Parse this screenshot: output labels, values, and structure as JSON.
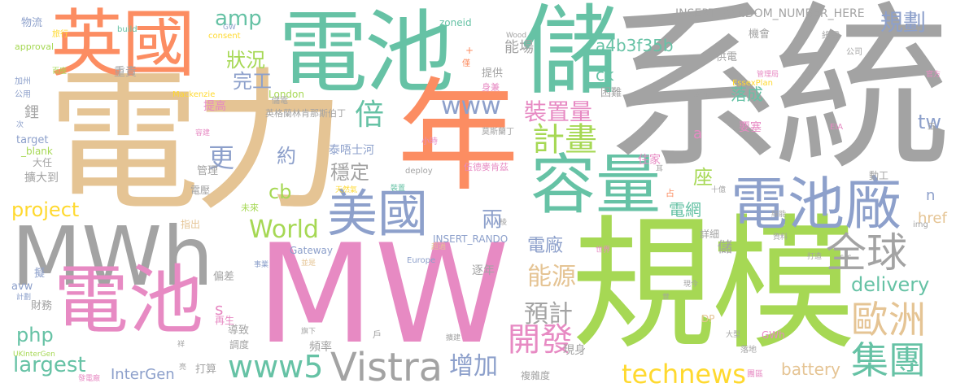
{
  "palette": {
    "gray": "#a3a3a3",
    "green": "#66c2a5",
    "orange": "#fc8d62",
    "blue": "#8da0cb",
    "pink": "#e78ac3",
    "lime": "#a6d854",
    "yellow": "#ffd92f",
    "tan": "#e5c494"
  },
  "words": [
    {
      "text": "系統",
      "color": "gray"
    },
    {
      "text": "電力",
      "color": "tan"
    },
    {
      "text": "MW",
      "color": "pink"
    },
    {
      "text": "規模",
      "color": "lime"
    },
    {
      "text": "電池",
      "color": "green"
    },
    {
      "text": "年",
      "color": "orange"
    },
    {
      "text": "儲",
      "color": "green"
    },
    {
      "text": "英國",
      "color": "orange"
    },
    {
      "text": "MWh",
      "color": "gray"
    },
    {
      "text": "電池",
      "color": "pink"
    },
    {
      "text": "容量",
      "color": "green"
    },
    {
      "text": "電池廠",
      "color": "blue"
    },
    {
      "text": "美國",
      "color": "blue"
    },
    {
      "text": "Vistra",
      "color": "gray"
    },
    {
      "text": "全球",
      "color": "gray"
    },
    {
      "text": "歐洲",
      "color": "tan"
    },
    {
      "text": "集團",
      "color": "green"
    },
    {
      "text": "計畫",
      "color": "lime"
    },
    {
      "text": "開發",
      "color": "pink"
    },
    {
      "text": "www5",
      "color": "green"
    },
    {
      "text": "World",
      "color": "lime"
    },
    {
      "text": "technews",
      "color": "yellow"
    },
    {
      "text": "增加",
      "color": "blue"
    },
    {
      "text": "預計",
      "color": "gray"
    },
    {
      "text": "能源",
      "color": "tan"
    },
    {
      "text": "裝置量",
      "color": "pink"
    },
    {
      "text": "www",
      "color": "blue"
    },
    {
      "text": "規劃",
      "color": "blue"
    },
    {
      "text": "a4b3f35b",
      "color": "green"
    },
    {
      "text": "狀況",
      "color": "lime"
    },
    {
      "text": "完工",
      "color": "blue"
    },
    {
      "text": "amp",
      "color": "green"
    },
    {
      "text": "倍",
      "color": "green"
    },
    {
      "text": "更",
      "color": "blue"
    },
    {
      "text": "約",
      "color": "blue"
    },
    {
      "text": "cb",
      "color": "lime"
    },
    {
      "text": "穩定",
      "color": "gray"
    },
    {
      "text": "座",
      "color": "lime"
    },
    {
      "text": "電網",
      "color": "green"
    },
    {
      "text": "電廠",
      "color": "blue"
    },
    {
      "text": "兩",
      "color": "blue"
    },
    {
      "text": "delivery",
      "color": "green"
    },
    {
      "text": "project",
      "color": "yellow"
    },
    {
      "text": "php",
      "color": "green"
    },
    {
      "text": "largest",
      "color": "green"
    },
    {
      "text": "battery",
      "color": "tan"
    },
    {
      "text": "tw",
      "color": "blue"
    },
    {
      "text": "ck",
      "color": "green"
    },
    {
      "text": "InterGen",
      "color": "blue"
    },
    {
      "text": "落成",
      "color": "green"
    },
    {
      "text": "能場",
      "color": "gray"
    },
    {
      "text": "INSERT_RANDOM_NUMBER_HERE",
      "color": "gray"
    },
    {
      "text": "href",
      "color": "tan"
    },
    {
      "text": "s",
      "color": "pink"
    },
    {
      "text": "泰唔士河",
      "color": "blue"
    },
    {
      "text": "鋰",
      "color": "gray"
    },
    {
      "text": "提高",
      "color": "pink"
    },
    {
      "text": "重責",
      "color": "gray"
    },
    {
      "text": "a",
      "color": "pink"
    },
    {
      "text": "n",
      "color": "blue"
    },
    {
      "text": "儲",
      "color": "gray"
    },
    {
      "text": "逐年",
      "color": "gray"
    },
    {
      "text": "頻率",
      "color": "gray"
    },
    {
      "text": "現身",
      "color": "gray"
    },
    {
      "text": "複雜度",
      "color": "gray"
    },
    {
      "text": "詳細",
      "color": "gray"
    },
    {
      "text": "GWh",
      "color": "pink"
    },
    {
      "text": "機會",
      "color": "gray"
    },
    {
      "text": "綠電",
      "color": "gray"
    },
    {
      "text": "供電",
      "color": "gray"
    },
    {
      "text": "提供",
      "color": "gray"
    },
    {
      "text": "困難",
      "color": "gray"
    },
    {
      "text": "要塞",
      "color": "pink"
    },
    {
      "text": "住家",
      "color": "pink"
    },
    {
      "text": "動工",
      "color": "gray"
    },
    {
      "text": "管理",
      "color": "gray"
    },
    {
      "text": "電壓",
      "color": "gray"
    },
    {
      "text": "擴大到",
      "color": "gray"
    },
    {
      "text": "大任",
      "color": "gray"
    },
    {
      "text": "target",
      "color": "blue"
    },
    {
      "text": "_blank",
      "color": "lime"
    },
    {
      "text": "zoneid",
      "color": "green"
    },
    {
      "text": "London",
      "color": "lime"
    },
    {
      "text": "INSERT_RANDO",
      "color": "blue"
    },
    {
      "text": "Gateway",
      "color": "blue"
    },
    {
      "text": "EssexPlan",
      "color": "yellow"
    },
    {
      "text": "Mackenzie",
      "color": "yellow"
    },
    {
      "text": "英格蘭林肯那斯伯丁",
      "color": "gray"
    },
    {
      "text": "莫斯蘭丁",
      "color": "gray"
    },
    {
      "text": "伍德麥肯茲",
      "color": "pink"
    },
    {
      "text": "財務",
      "color": "gray"
    },
    {
      "text": "偏差",
      "color": "gray"
    },
    {
      "text": "導致",
      "color": "gray"
    },
    {
      "text": "調度",
      "color": "gray"
    },
    {
      "text": "打算",
      "color": "gray"
    },
    {
      "text": "avw",
      "color": "blue"
    },
    {
      "text": "物流",
      "color": "blue"
    },
    {
      "text": "旅行",
      "color": "yellow"
    },
    {
      "text": "approval",
      "color": "lime"
    },
    {
      "text": "build",
      "color": "green"
    },
    {
      "text": "consent",
      "color": "yellow"
    },
    {
      "text": "GW",
      "color": "blue"
    },
    {
      "text": "Wood",
      "color": "gray"
    },
    {
      "text": "gains",
      "color": "gray"
    },
    {
      "text": "img",
      "color": "gray"
    },
    {
      "text": "src",
      "color": "gray"
    },
    {
      "text": "DP",
      "color": "tan"
    },
    {
      "text": "EIA",
      "color": "pink"
    },
    {
      "text": "Europe",
      "color": "blue"
    },
    {
      "text": "deploy",
      "color": "gray"
    },
    {
      "text": "UKInterGen",
      "color": "lime"
    },
    {
      "text": "公司",
      "color": "gray"
    },
    {
      "text": "加州",
      "color": "blue"
    },
    {
      "text": "公用",
      "color": "blue"
    },
    {
      "text": "計劃",
      "color": "blue"
    },
    {
      "text": "事業",
      "color": "blue"
    },
    {
      "text": "正",
      "color": "gray"
    },
    {
      "text": "現今",
      "color": "gray"
    },
    {
      "text": "團區",
      "color": "pink"
    },
    {
      "text": "落地",
      "color": "gray"
    },
    {
      "text": "未來",
      "color": "lime"
    },
    {
      "text": "指出",
      "color": "tan"
    },
    {
      "text": "小時",
      "color": "pink"
    },
    {
      "text": "裝置",
      "color": "green"
    },
    {
      "text": "身兼",
      "color": "pink"
    },
    {
      "text": "管理局",
      "color": "pink"
    },
    {
      "text": "僅",
      "color": "orange"
    },
    {
      "text": "百座",
      "color": "lime"
    },
    {
      "text": "官方",
      "color": "pink"
    },
    {
      "text": "大型",
      "color": "gray"
    },
    {
      "text": "打造",
      "color": "gray"
    },
    {
      "text": "資料",
      "color": "gray"
    },
    {
      "text": "容建",
      "color": "pink"
    },
    {
      "text": "天然氣",
      "color": "yellow"
    },
    {
      "text": "超過",
      "color": "tan"
    },
    {
      "text": "並是",
      "color": "tan"
    },
    {
      "text": "戶",
      "color": "gray"
    },
    {
      "text": "擴建",
      "color": "gray"
    },
    {
      "text": "發電廠",
      "color": "pink"
    },
    {
      "text": "再生",
      "color": "pink"
    },
    {
      "text": "擬",
      "color": "blue"
    },
    {
      "text": "次",
      "color": "blue"
    },
    {
      "text": "占",
      "color": "orange"
    },
    {
      "text": "世界",
      "color": "pink"
    },
    {
      "text": "十億",
      "color": "gray"
    },
    {
      "text": "耳",
      "color": "gray"
    },
    {
      "text": "儲電",
      "color": "gray"
    },
    {
      "text": "祥",
      "color": "gray"
    },
    {
      "text": "世",
      "color": "gray"
    },
    {
      "text": "亮",
      "color": "gray"
    },
    {
      "text": "棱",
      "color": "gray"
    },
    {
      "text": "綠能",
      "color": "gray"
    },
    {
      "text": "旗下",
      "color": "gray"
    },
    {
      "text": "+",
      "color": "orange"
    }
  ]
}
